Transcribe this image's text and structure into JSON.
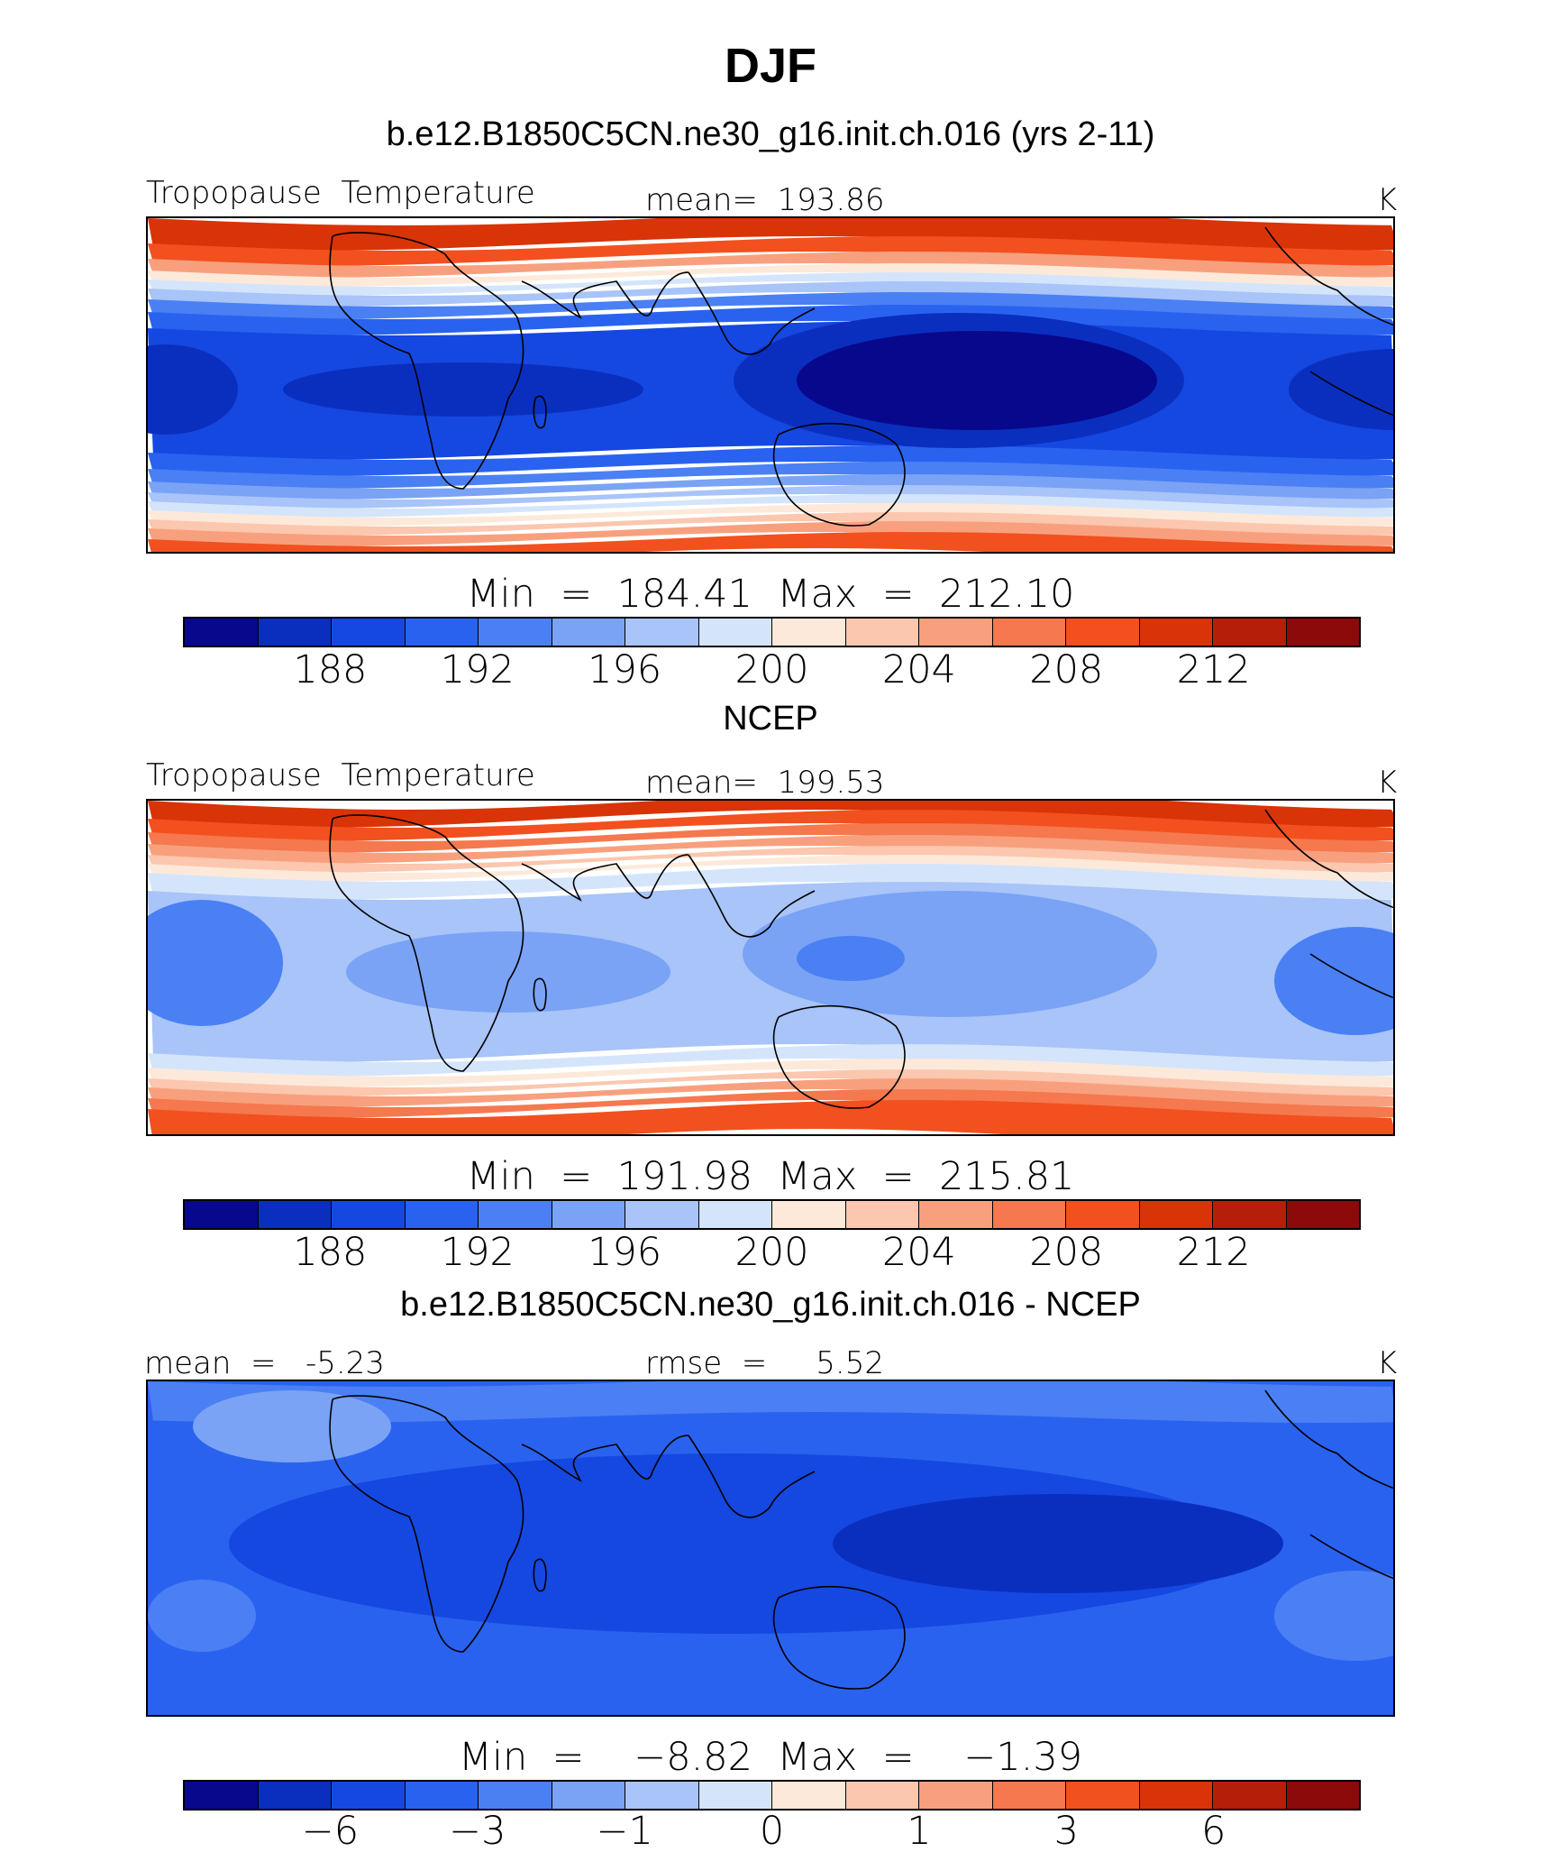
{
  "title": "DJF",
  "palette": [
    "#08088c",
    "#0a2fbf",
    "#1548e0",
    "#2a62f0",
    "#4a80f4",
    "#7aa3f5",
    "#a8c4f8",
    "#d4e5fb",
    "#fde9da",
    "#fbc7ae",
    "#f8a07e",
    "#f5784e",
    "#f2501f",
    "#d93308",
    "#b51e08",
    "#8c0a0a"
  ],
  "panels": [
    {
      "subtitle": "b.e12.B1850C5CN.ne30_g16.init.ch.016 (yrs 2-11)",
      "left_label": "Tropopause  Temperature",
      "center_label": "mean=  193.86",
      "units": "K",
      "minmax": "Min  =  184.41  Max  =  212.10",
      "ticks": [
        "188",
        "192",
        "196",
        "200",
        "204",
        "208",
        "212"
      ],
      "field": "model"
    },
    {
      "subtitle": "NCEP",
      "left_label": "Tropopause  Temperature",
      "center_label": "mean=  199.53",
      "units": "K",
      "minmax": "Min  =  191.98  Max  =  215.81",
      "ticks": [
        "188",
        "192",
        "196",
        "200",
        "204",
        "208",
        "212"
      ],
      "field": "obs"
    },
    {
      "subtitle": "b.e12.B1850C5CN.ne30_g16.init.ch.016 - NCEP",
      "left_label": "mean  =   -5.23",
      "center_label": "rmse  =     5.52",
      "units": "K",
      "minmax": "Min  =    −8.82  Max  =    −1.39",
      "ticks": [
        "−6",
        "−3",
        "−1",
        "0",
        "1",
        "3",
        "6"
      ],
      "field": "diff"
    }
  ]
}
